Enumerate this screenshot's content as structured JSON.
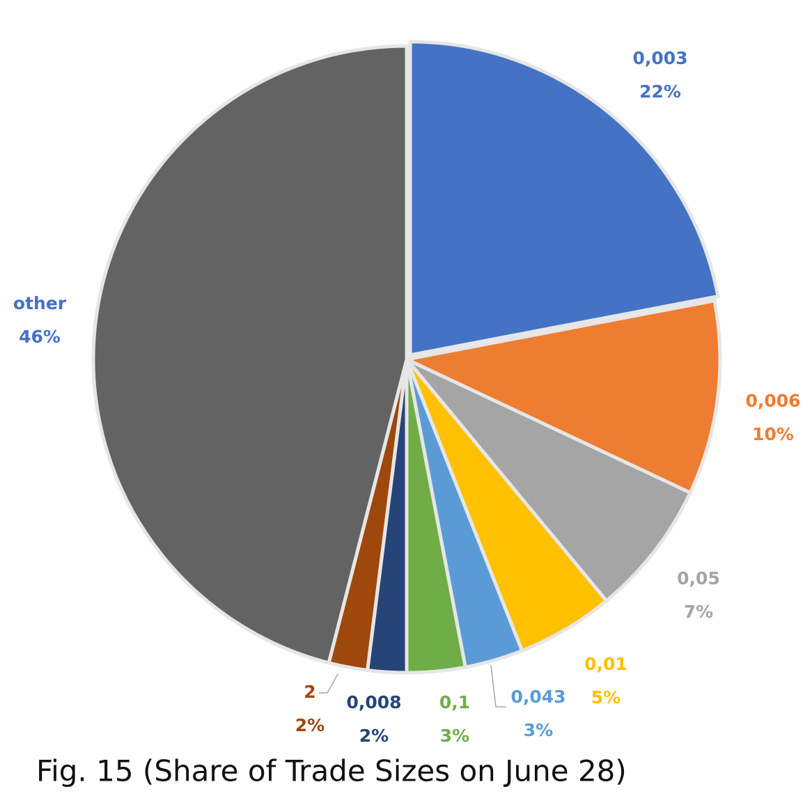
{
  "chart_data": {
    "type": "pie",
    "title": "Fig. 15  (Share of Trade Sizes on June 28)",
    "categories": [
      "0,003",
      "0,006",
      "0,05",
      "0,01",
      "0,043",
      "0,1",
      "0,008",
      "2",
      "other"
    ],
    "values": [
      22,
      10,
      7,
      5,
      3,
      3,
      2,
      2,
      46
    ],
    "value_labels": [
      "22%",
      "10%",
      "7%",
      "5%",
      "3%",
      "3%",
      "2%",
      "2%",
      "46%"
    ],
    "colors": [
      "#4472c4",
      "#ed7d31",
      "#a5a5a5",
      "#ffc000",
      "#5b9bd5",
      "#70ad47",
      "#264478",
      "#9e480e",
      "#636363"
    ],
    "label_colors": [
      "#4472c4",
      "#ed7d31",
      "#a5a5a5",
      "#ffc000",
      "#5b9bd5",
      "#70ad47",
      "#264478",
      "#9e480e",
      "#4472c4"
    ]
  }
}
